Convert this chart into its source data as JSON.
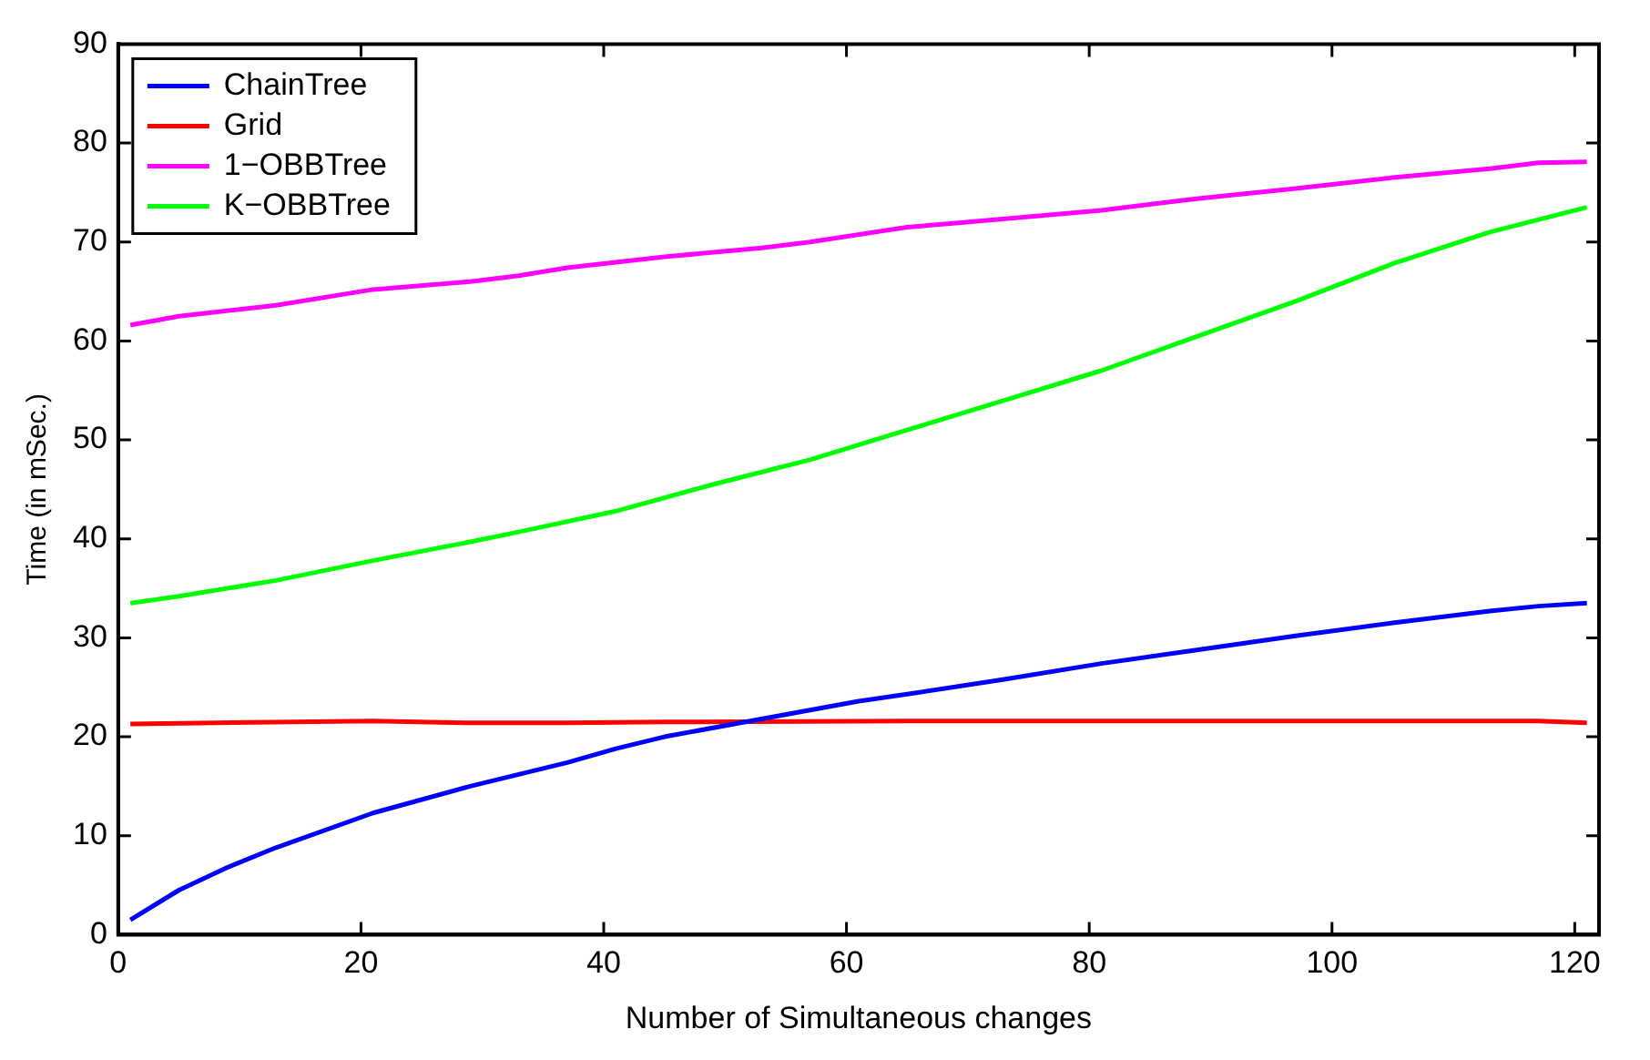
{
  "chart_data": {
    "type": "line",
    "xlabel": "Number of Simultaneous changes",
    "ylabel": "Time (in mSec.)",
    "xlim": [
      0,
      122
    ],
    "xticks": [
      0,
      20,
      40,
      60,
      80,
      100,
      120
    ],
    "ylim": [
      0,
      90
    ],
    "yticks": [
      0,
      10,
      20,
      30,
      40,
      50,
      60,
      70,
      80,
      90
    ],
    "grid": false,
    "legend": "top left",
    "marker": "none",
    "line_style": "solid",
    "series": [
      {
        "name": "ChainTree",
        "color": "#0000ff",
        "x": [
          1,
          5,
          9,
          13,
          21,
          29,
          37,
          41,
          45,
          53,
          61,
          65,
          73,
          81,
          89,
          97,
          105,
          113,
          117,
          121
        ],
        "values": [
          1.5,
          4.5,
          6.8,
          8.8,
          12.3,
          15,
          17.4,
          18.8,
          20,
          21.8,
          23.6,
          24.3,
          25.8,
          27.4,
          28.8,
          30.2,
          31.5,
          32.7,
          33.2,
          33.5
        ]
      },
      {
        "name": "Grid",
        "color": "#ff0000",
        "x": [
          1,
          21,
          29,
          37,
          45,
          65,
          117,
          121
        ],
        "values": [
          21.3,
          21.6,
          21.4,
          21.4,
          21.5,
          21.6,
          21.6,
          21.4
        ]
      },
      {
        "name": "1−OBBTree",
        "color": "#ff00ff",
        "x": [
          1,
          5,
          13,
          21,
          29,
          33,
          37,
          45,
          53,
          57,
          65,
          69,
          81,
          89,
          97,
          105,
          113,
          117,
          121
        ],
        "values": [
          61.6,
          62.5,
          63.6,
          65.2,
          66,
          66.6,
          67.4,
          68.5,
          69.4,
          70,
          71.5,
          71.9,
          73.2,
          74.4,
          75.4,
          76.5,
          77.4,
          78,
          78.1
        ]
      },
      {
        "name": "K−OBBTree",
        "color": "#00ff00",
        "x": [
          1,
          5,
          13,
          21,
          29,
          33,
          41,
          49,
          57,
          65,
          73,
          81,
          89,
          97,
          105,
          113,
          121
        ],
        "values": [
          33.5,
          34.2,
          35.8,
          37.8,
          39.7,
          40.7,
          42.8,
          45.5,
          48,
          51,
          54,
          57,
          60.5,
          64,
          67.8,
          71,
          73.5
        ]
      }
    ]
  }
}
